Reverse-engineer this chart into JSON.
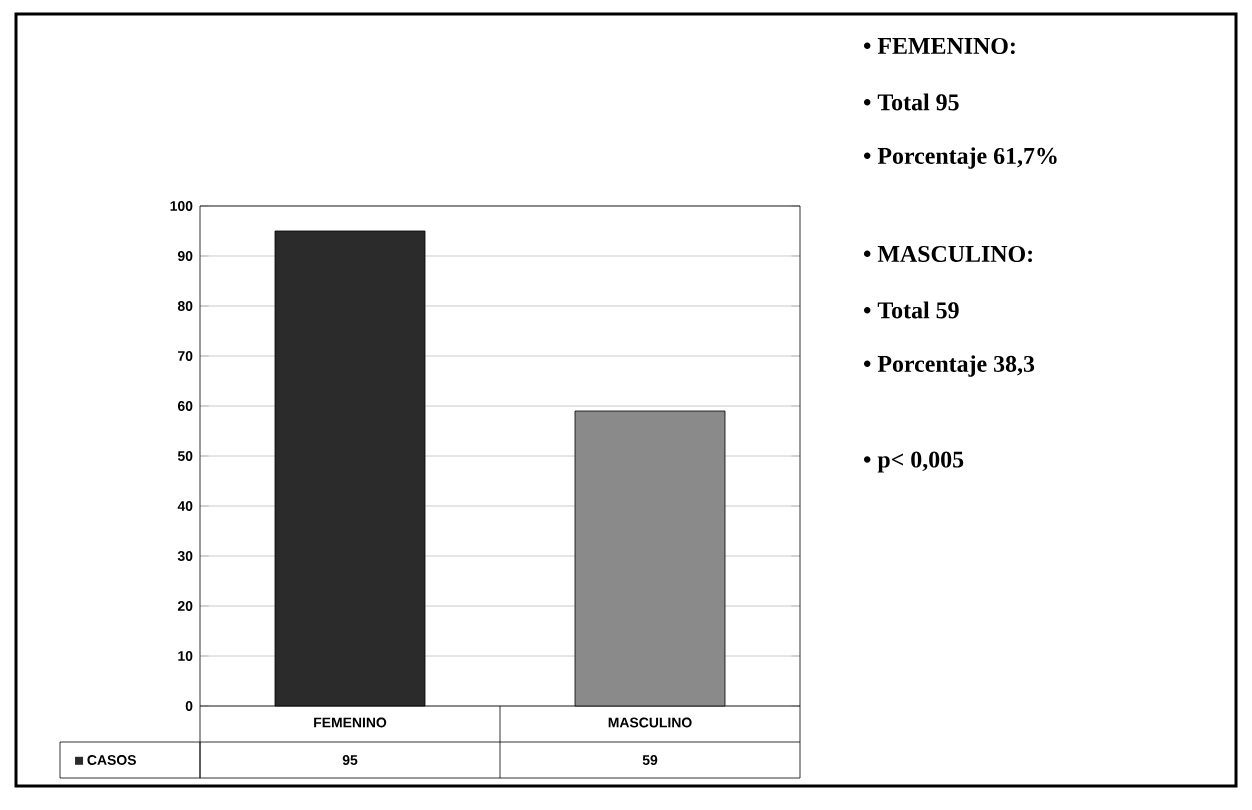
{
  "chart_data": {
    "type": "bar",
    "categories": [
      "FEMENINO",
      "MASCULINO"
    ],
    "series": [
      {
        "name": "CASOS",
        "color": "#2b2b2b",
        "colors": [
          "#2b2b2b",
          "#8a8a8a"
        ],
        "values": [
          95,
          59
        ]
      }
    ],
    "ylim": [
      0,
      100
    ],
    "yticks": [
      0,
      10,
      20,
      30,
      40,
      50,
      60,
      70,
      80,
      90,
      100
    ],
    "grid": "y",
    "data_labels": true,
    "legend": "bottom left",
    "annotations": [
      "• FEMENINO:",
      "• Total 95",
      "• Porcentaje  61,7%",
      "• MASCULINO:",
      "• Total 59",
      "• Porcentaje  38,3",
      "• p< 0,005"
    ]
  }
}
